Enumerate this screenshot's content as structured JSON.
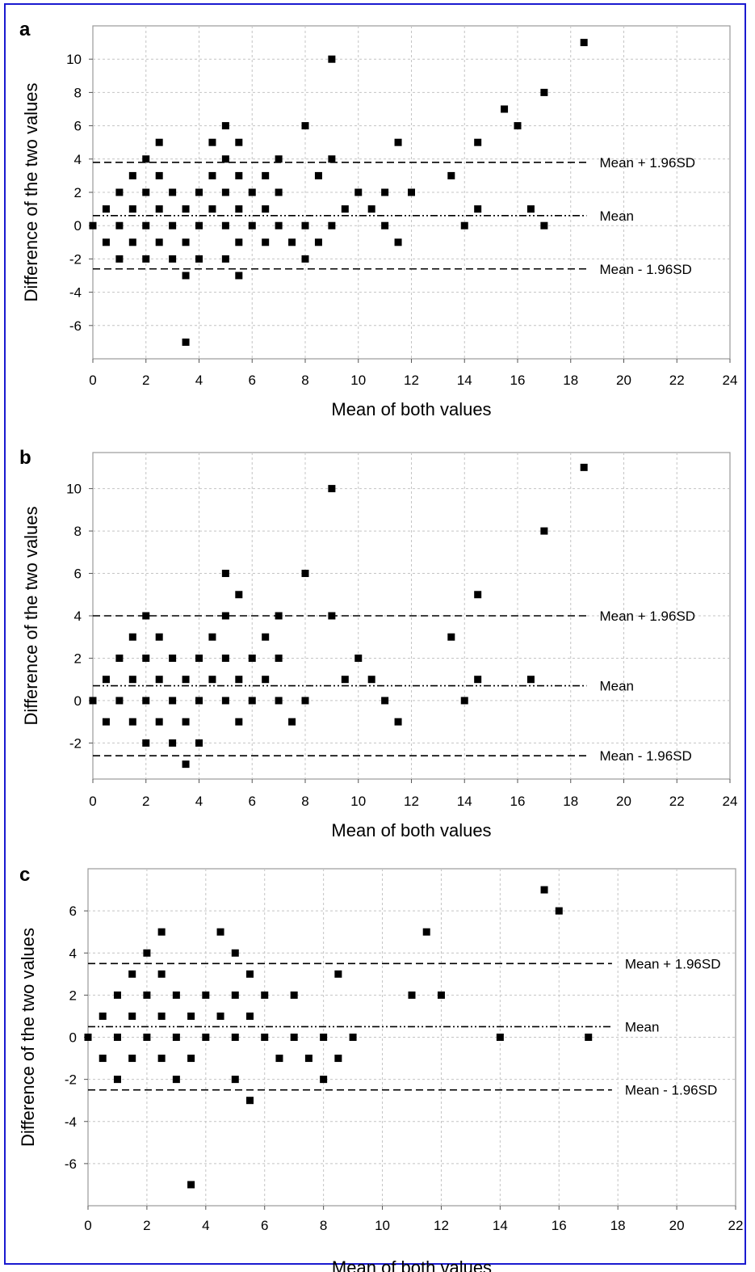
{
  "figure": {
    "border_color": "#1a1ad0"
  },
  "chart_data": [
    {
      "panel": "a",
      "type": "scatter",
      "xlabel": "Mean of both values",
      "ylabel": "Difference of the two values",
      "xlim": [
        0,
        24
      ],
      "ylim": [
        -8,
        12
      ],
      "xticks": [
        0,
        2,
        4,
        6,
        8,
        10,
        12,
        14,
        16,
        18,
        20,
        22,
        24
      ],
      "yticks": [
        -6,
        -4,
        -2,
        0,
        2,
        4,
        6,
        8,
        10
      ],
      "grid": true,
      "points": [
        [
          0,
          0
        ],
        [
          0.5,
          1
        ],
        [
          0.5,
          -1
        ],
        [
          1,
          0
        ],
        [
          1,
          2
        ],
        [
          1,
          -2
        ],
        [
          1.5,
          1
        ],
        [
          1.5,
          3
        ],
        [
          1.5,
          -1
        ],
        [
          2,
          0
        ],
        [
          2,
          2
        ],
        [
          2,
          4
        ],
        [
          2,
          -2
        ],
        [
          2.5,
          1
        ],
        [
          2.5,
          3
        ],
        [
          2.5,
          5
        ],
        [
          2.5,
          -1
        ],
        [
          3,
          0
        ],
        [
          3,
          2
        ],
        [
          3,
          -2
        ],
        [
          3.5,
          1
        ],
        [
          3.5,
          -1
        ],
        [
          3.5,
          -3
        ],
        [
          3.5,
          -7
        ],
        [
          4,
          0
        ],
        [
          4,
          2
        ],
        [
          4,
          -2
        ],
        [
          4.5,
          1
        ],
        [
          4.5,
          3
        ],
        [
          4.5,
          5
        ],
        [
          5,
          0
        ],
        [
          5,
          2
        ],
        [
          5,
          4
        ],
        [
          5,
          6
        ],
        [
          5,
          -2
        ],
        [
          5.5,
          1
        ],
        [
          5.5,
          3
        ],
        [
          5.5,
          5
        ],
        [
          5.5,
          -1
        ],
        [
          5.5,
          -3
        ],
        [
          6,
          0
        ],
        [
          6,
          2
        ],
        [
          6.5,
          1
        ],
        [
          6.5,
          3
        ],
        [
          6.5,
          -1
        ],
        [
          7,
          0
        ],
        [
          7,
          2
        ],
        [
          7,
          4
        ],
        [
          7.5,
          -1
        ],
        [
          8,
          0
        ],
        [
          8,
          6
        ],
        [
          8,
          -2
        ],
        [
          8.5,
          3
        ],
        [
          8.5,
          -1
        ],
        [
          9,
          0
        ],
        [
          9,
          4
        ],
        [
          9,
          10
        ],
        [
          9.5,
          1
        ],
        [
          10,
          2
        ],
        [
          10.5,
          1
        ],
        [
          11,
          0
        ],
        [
          11,
          2
        ],
        [
          11.5,
          5
        ],
        [
          11.5,
          -1
        ],
        [
          12,
          2
        ],
        [
          13.5,
          3
        ],
        [
          14,
          0
        ],
        [
          14.5,
          1
        ],
        [
          14.5,
          5
        ],
        [
          15.5,
          7
        ],
        [
          16,
          6
        ],
        [
          16.5,
          1
        ],
        [
          17,
          0
        ],
        [
          17,
          8
        ],
        [
          18.5,
          11
        ]
      ],
      "reference_lines": [
        {
          "label": "Mean + 1.96SD",
          "value": 3.8,
          "style": "dashed"
        },
        {
          "label": "Mean",
          "value": 0.6,
          "style": "dash-dot-dot"
        },
        {
          "label": "Mean - 1.96SD",
          "value": -2.6,
          "style": "dashed"
        }
      ]
    },
    {
      "panel": "b",
      "type": "scatter",
      "xlabel": "Mean of both values",
      "ylabel": "Difference of the two values",
      "xlim": [
        0,
        24
      ],
      "ylim": [
        -3.7,
        11.7
      ],
      "xticks": [
        0,
        2,
        4,
        6,
        8,
        10,
        12,
        14,
        16,
        18,
        20,
        22,
        24
      ],
      "yticks": [
        -2,
        0,
        2,
        4,
        6,
        8,
        10
      ],
      "grid": true,
      "points": [
        [
          0,
          0
        ],
        [
          0.5,
          1
        ],
        [
          0.5,
          -1
        ],
        [
          1,
          0
        ],
        [
          1,
          2
        ],
        [
          1.5,
          1
        ],
        [
          1.5,
          3
        ],
        [
          1.5,
          -1
        ],
        [
          2,
          0
        ],
        [
          2,
          2
        ],
        [
          2,
          4
        ],
        [
          2,
          -2
        ],
        [
          2.5,
          1
        ],
        [
          2.5,
          3
        ],
        [
          2.5,
          -1
        ],
        [
          3,
          0
        ],
        [
          3,
          2
        ],
        [
          3,
          -2
        ],
        [
          3.5,
          1
        ],
        [
          3.5,
          -1
        ],
        [
          3.5,
          -3
        ],
        [
          4,
          0
        ],
        [
          4,
          2
        ],
        [
          4,
          -2
        ],
        [
          4.5,
          1
        ],
        [
          4.5,
          3
        ],
        [
          5,
          0
        ],
        [
          5,
          2
        ],
        [
          5,
          4
        ],
        [
          5,
          6
        ],
        [
          5.5,
          1
        ],
        [
          5.5,
          5
        ],
        [
          5.5,
          -1
        ],
        [
          6,
          0
        ],
        [
          6,
          2
        ],
        [
          6.5,
          1
        ],
        [
          6.5,
          3
        ],
        [
          7,
          0
        ],
        [
          7,
          2
        ],
        [
          7,
          4
        ],
        [
          7.5,
          -1
        ],
        [
          8,
          0
        ],
        [
          8,
          6
        ],
        [
          9,
          4
        ],
        [
          9,
          10
        ],
        [
          9.5,
          1
        ],
        [
          10,
          2
        ],
        [
          10.5,
          1
        ],
        [
          11,
          0
        ],
        [
          11.5,
          -1
        ],
        [
          13.5,
          3
        ],
        [
          14,
          0
        ],
        [
          14.5,
          1
        ],
        [
          14.5,
          5
        ],
        [
          16.5,
          1
        ],
        [
          17,
          8
        ],
        [
          18.5,
          11
        ]
      ],
      "reference_lines": [
        {
          "label": "Mean + 1.96SD",
          "value": 4.0,
          "style": "dashed"
        },
        {
          "label": "Mean",
          "value": 0.7,
          "style": "dash-dot-dot"
        },
        {
          "label": "Mean - 1.96SD",
          "value": -2.6,
          "style": "dashed"
        }
      ]
    },
    {
      "panel": "c",
      "type": "scatter",
      "xlabel": "Mean of both values",
      "ylabel": "Difference of the two values",
      "xlim": [
        0,
        22
      ],
      "ylim": [
        -8,
        8
      ],
      "xticks": [
        0,
        2,
        4,
        6,
        8,
        10,
        12,
        14,
        16,
        18,
        20,
        22
      ],
      "yticks": [
        -6,
        -4,
        -2,
        0,
        2,
        4,
        6
      ],
      "grid": true,
      "points": [
        [
          0,
          0
        ],
        [
          0.5,
          1
        ],
        [
          0.5,
          -1
        ],
        [
          1,
          0
        ],
        [
          1,
          2
        ],
        [
          1,
          -2
        ],
        [
          1.5,
          1
        ],
        [
          1.5,
          3
        ],
        [
          1.5,
          -1
        ],
        [
          2,
          0
        ],
        [
          2,
          2
        ],
        [
          2,
          4
        ],
        [
          2.5,
          1
        ],
        [
          2.5,
          3
        ],
        [
          2.5,
          5
        ],
        [
          2.5,
          -1
        ],
        [
          3,
          0
        ],
        [
          3,
          2
        ],
        [
          3,
          -2
        ],
        [
          3.5,
          1
        ],
        [
          3.5,
          -1
        ],
        [
          3.5,
          -7
        ],
        [
          4,
          0
        ],
        [
          4,
          2
        ],
        [
          4.5,
          1
        ],
        [
          4.5,
          5
        ],
        [
          5,
          0
        ],
        [
          5,
          2
        ],
        [
          5,
          4
        ],
        [
          5,
          -2
        ],
        [
          5.5,
          1
        ],
        [
          5.5,
          3
        ],
        [
          5.5,
          -3
        ],
        [
          6,
          0
        ],
        [
          6,
          2
        ],
        [
          6.5,
          -1
        ],
        [
          7,
          0
        ],
        [
          7,
          2
        ],
        [
          7.5,
          -1
        ],
        [
          8,
          0
        ],
        [
          8,
          -2
        ],
        [
          8.5,
          3
        ],
        [
          8.5,
          -1
        ],
        [
          9,
          0
        ],
        [
          11,
          2
        ],
        [
          11.5,
          5
        ],
        [
          12,
          2
        ],
        [
          14,
          0
        ],
        [
          15.5,
          7
        ],
        [
          16,
          6
        ],
        [
          17,
          0
        ]
      ],
      "reference_lines": [
        {
          "label": "Mean + 1.96SD",
          "value": 3.5,
          "style": "dashed"
        },
        {
          "label": "Mean",
          "value": 0.5,
          "style": "dash-dot-dot"
        },
        {
          "label": "Mean - 1.96SD",
          "value": -2.5,
          "style": "dashed"
        }
      ]
    }
  ]
}
